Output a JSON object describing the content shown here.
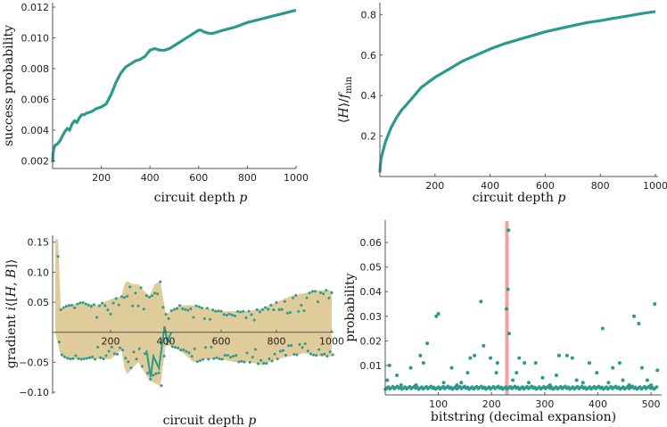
{
  "colors": {
    "teal": "#2a9a8f",
    "sand": "#dfcc9a",
    "highlight": "#f08a8a",
    "axis": "#555555"
  },
  "chart_data": [
    {
      "type": "line",
      "xlabel": "circuit depth p",
      "ylabel": "success probability",
      "xlim": [
        0,
        1000
      ],
      "ylim": [
        0.0015,
        0.012
      ],
      "xticks": [
        200,
        400,
        600,
        800,
        1000
      ],
      "yticks": [
        0.002,
        0.004,
        0.006,
        0.008,
        0.01,
        0.012
      ],
      "ytick_labels": [
        "0.002",
        "0.004",
        "0.006",
        "0.008",
        "0.010",
        "0.012"
      ],
      "series": [
        {
          "x": [
            0,
            2,
            5,
            10,
            20,
            30,
            40,
            50,
            60,
            70,
            80,
            90,
            100,
            110,
            120,
            130,
            140,
            160,
            180,
            200,
            220,
            240,
            260,
            280,
            300,
            320,
            340,
            360,
            380,
            400,
            420,
            440,
            460,
            480,
            500,
            520,
            540,
            560,
            580,
            600,
            610,
            620,
            640,
            660,
            680,
            700,
            750,
            800,
            850,
            900,
            950,
            1000
          ],
          "y": [
            0.0019,
            0.0025,
            0.0028,
            0.003,
            0.0031,
            0.0033,
            0.0036,
            0.0039,
            0.0041,
            0.004,
            0.0044,
            0.0046,
            0.0045,
            0.0048,
            0.005,
            0.005,
            0.0051,
            0.0052,
            0.0054,
            0.0055,
            0.0057,
            0.0063,
            0.0071,
            0.0077,
            0.0081,
            0.0083,
            0.0085,
            0.0086,
            0.0088,
            0.0092,
            0.0093,
            0.0092,
            0.0092,
            0.0093,
            0.0095,
            0.0097,
            0.0099,
            0.0101,
            0.0103,
            0.0105,
            0.0105,
            0.0104,
            0.0103,
            0.0103,
            0.0104,
            0.0105,
            0.0107,
            0.011,
            0.0112,
            0.0114,
            0.0116,
            0.0118
          ]
        }
      ]
    },
    {
      "type": "line",
      "xlabel": "circuit depth p",
      "ylabel": "⟨H⟩/f_min",
      "xlim": [
        0,
        1000
      ],
      "ylim": [
        0,
        0.85
      ],
      "xticks": [
        200,
        400,
        600,
        800,
        1000
      ],
      "yticks": [
        0.2,
        0.4,
        0.6,
        0.8
      ],
      "ytick_labels": [
        "0.2",
        "0.4",
        "0.6",
        "0.8"
      ],
      "series": [
        {
          "x": [
            0,
            2,
            5,
            10,
            20,
            40,
            60,
            80,
            100,
            150,
            200,
            250,
            300,
            350,
            400,
            450,
            500,
            550,
            600,
            650,
            700,
            750,
            800,
            850,
            900,
            950,
            1000
          ],
          "y": [
            0.02,
            0.06,
            0.09,
            0.12,
            0.17,
            0.24,
            0.29,
            0.33,
            0.36,
            0.44,
            0.49,
            0.53,
            0.57,
            0.6,
            0.63,
            0.655,
            0.675,
            0.695,
            0.715,
            0.73,
            0.745,
            0.76,
            0.77,
            0.782,
            0.793,
            0.805,
            0.815
          ]
        }
      ]
    },
    {
      "type": "line",
      "xlabel": "circuit depth p",
      "ylabel": "gradient i⟨[H, B]⟩",
      "xlim": [
        0,
        1000
      ],
      "ylim": [
        -0.1,
        0.16
      ],
      "xticks": [
        200,
        400,
        600,
        800,
        1000
      ],
      "yticks": [
        -0.1,
        -0.05,
        0.05,
        0.1,
        0.15
      ],
      "ytick_labels": [
        "−0.10",
        "−0.05",
        "0.05",
        "0.10",
        "0.15"
      ],
      "envelope": {
        "x": [
          0,
          10,
          20,
          50,
          100,
          150,
          200,
          240,
          250,
          260,
          280,
          300,
          320,
          340,
          360,
          380,
          400,
          450,
          500,
          550,
          600,
          650,
          700,
          750,
          800,
          850,
          900,
          950,
          1000
        ],
        "upper": [
          0.155,
          0.155,
          0.04,
          0.045,
          0.05,
          0.045,
          0.055,
          0.06,
          0.08,
          0.085,
          0.08,
          0.08,
          0.07,
          0.06,
          0.08,
          0.085,
          0.03,
          0.045,
          0.045,
          0.04,
          0.035,
          0.035,
          0.035,
          0.04,
          0.05,
          0.06,
          0.065,
          0.07,
          0.07
        ],
        "lower": [
          0.0,
          -0.02,
          -0.04,
          -0.045,
          -0.045,
          -0.045,
          -0.045,
          -0.03,
          -0.06,
          -0.07,
          -0.06,
          -0.05,
          -0.065,
          -0.08,
          -0.085,
          -0.09,
          -0.02,
          -0.03,
          -0.05,
          -0.045,
          -0.045,
          -0.05,
          -0.05,
          -0.055,
          -0.045,
          -0.04,
          -0.035,
          -0.04,
          -0.04
        ]
      }
    },
    {
      "type": "scatter",
      "xlabel": "bitstring (decimal expansion)",
      "ylabel": "probability",
      "xlim": [
        0,
        520
      ],
      "ylim": [
        -0.002,
        0.068
      ],
      "xticks": [
        100,
        200,
        300,
        400,
        500
      ],
      "yticks": [
        0.01,
        0.02,
        0.03,
        0.04,
        0.05,
        0.06
      ],
      "ytick_labels": [
        "0.01",
        "0.02",
        "0.03",
        "0.04",
        "0.05",
        "0.06"
      ],
      "highlight_x": 229,
      "points": [
        [
          232,
          0.065
        ],
        [
          231,
          0.041
        ],
        [
          228,
          0.033
        ],
        [
          233,
          0.023
        ],
        [
          96,
          0.03
        ],
        [
          100,
          0.031
        ],
        [
          180,
          0.036
        ],
        [
          185,
          0.018
        ],
        [
          507,
          0.035
        ],
        [
          468,
          0.03
        ],
        [
          477,
          0.027
        ],
        [
          409,
          0.025
        ],
        [
          22,
          0.006
        ],
        [
          4,
          0.004
        ],
        [
          8,
          0.01
        ],
        [
          48,
          0.009
        ],
        [
          66,
          0.014
        ],
        [
          72,
          0.011
        ],
        [
          79,
          0.019
        ],
        [
          125,
          0.009
        ],
        [
          143,
          0.003
        ],
        [
          155,
          0.007
        ],
        [
          160,
          0.013
        ],
        [
          168,
          0.014
        ],
        [
          198,
          0.013
        ],
        [
          209,
          0.007
        ],
        [
          211,
          0.011
        ],
        [
          247,
          0.007
        ],
        [
          252,
          0.013
        ],
        [
          262,
          0.011
        ],
        [
          283,
          0.011
        ],
        [
          296,
          0.005
        ],
        [
          322,
          0.006
        ],
        [
          327,
          0.014
        ],
        [
          342,
          0.014
        ],
        [
          352,
          0.013
        ],
        [
          372,
          0.003
        ],
        [
          384,
          0.011
        ],
        [
          398,
          0.007
        ],
        [
          428,
          0.009
        ],
        [
          441,
          0.011
        ],
        [
          447,
          0.004
        ],
        [
          459,
          0.002
        ],
        [
          483,
          0.009
        ],
        [
          493,
          0.004
        ],
        [
          512,
          0.008
        ],
        [
          30,
          0.002
        ],
        [
          58,
          0.002
        ],
        [
          110,
          0.003
        ],
        [
          135,
          0.002
        ],
        [
          240,
          0.004
        ],
        [
          270,
          0.003
        ],
        [
          310,
          0.002
        ],
        [
          360,
          0.004
        ],
        [
          420,
          0.003
        ],
        [
          500,
          0.002
        ]
      ],
      "baseline_points": 180
    }
  ]
}
